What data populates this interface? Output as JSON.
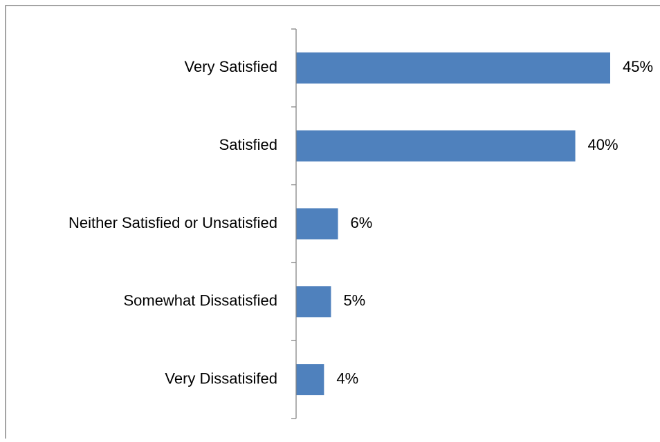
{
  "chart_data": {
    "type": "bar",
    "orientation": "horizontal",
    "categories": [
      "Very Satisfied",
      "Satisfied",
      "Neither Satisfied or Unsatisfied",
      "Somewhat Dissatisfied",
      "Very Dissatisifed"
    ],
    "values": [
      45,
      40,
      6,
      5,
      4
    ],
    "value_labels": [
      "45%",
      "40%",
      "6%",
      "5%",
      "4%"
    ],
    "unit": "%",
    "xlim": [
      0,
      45
    ],
    "grid": false,
    "legend": "none",
    "title": "",
    "xlabel": "",
    "ylabel": ""
  },
  "colors": {
    "bar": "#4F81BD",
    "axis": "#868686",
    "frame": "#868686",
    "text": "#000000"
  }
}
